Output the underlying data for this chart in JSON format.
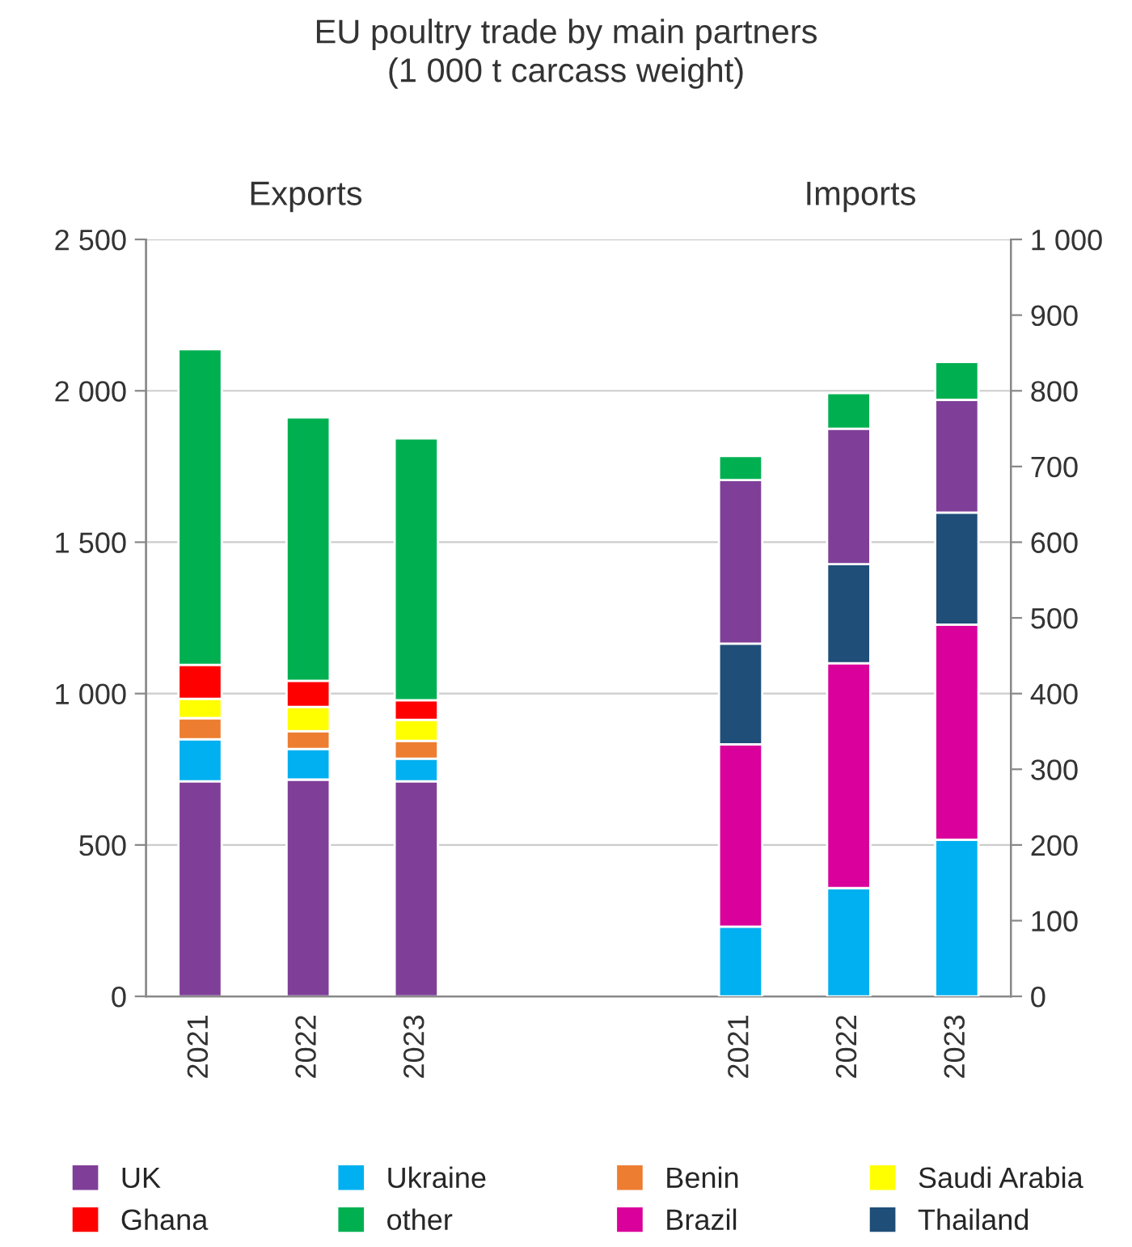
{
  "chart_data": {
    "type": "bar",
    "title": "EU poultry trade by main partners\n(1 000 t carcass weight)",
    "stacked": true,
    "categories": [
      "2021",
      "2022",
      "2023",
      null,
      null,
      "2021",
      "2022",
      "2023"
    ],
    "annotations": [
      "Exports",
      "Imports"
    ],
    "series": [
      {
        "name": "UK",
        "color": "#7f3f98",
        "values": [
          710,
          716,
          710,
          null,
          null,
          null,
          null,
          null
        ]
      },
      {
        "name": "Ukraine",
        "color": "#00b0f0",
        "values": [
          139,
          101,
          75,
          null,
          null,
          null,
          null,
          null
        ]
      },
      {
        "name": "Benin",
        "color": "#ed7d31",
        "values": [
          70,
          59,
          59,
          null,
          null,
          null,
          null,
          null
        ]
      },
      {
        "name": "Saudi Arabia",
        "color": "#ffff00",
        "values": [
          64,
          80,
          69,
          null,
          null,
          null,
          null,
          null
        ]
      },
      {
        "name": "Ghana",
        "color": "#ff0000",
        "values": [
          112,
          86,
          65,
          null,
          null,
          null,
          null,
          null
        ]
      },
      {
        "name": "other",
        "color": "#00b050",
        "values": [
          1042,
          870,
          865,
          null,
          null,
          null,
          null,
          null
        ]
      },
      {
        "color": "#00b0f0",
        "axis": "y2",
        "values": [
          null,
          null,
          null,
          null,
          null,
          92,
          143,
          207
        ]
      },
      {
        "name": "Brazil",
        "color": "#d9009b",
        "axis": "y2",
        "values": [
          null,
          null,
          null,
          null,
          null,
          241,
          297,
          284
        ]
      },
      {
        "name": "Thailand",
        "color": "#1f4e79",
        "axis": "y2",
        "values": [
          null,
          null,
          null,
          null,
          null,
          133,
          131,
          148
        ]
      },
      {
        "color": "#7f3f98",
        "axis": "y2",
        "values": [
          null,
          null,
          null,
          null,
          null,
          216,
          179,
          149
        ]
      },
      {
        "color": "#00b050",
        "axis": "y2",
        "values": [
          null,
          null,
          null,
          null,
          null,
          32,
          47,
          50
        ]
      }
    ],
    "ylim": [
      0,
      2500
    ],
    "yticks": [
      0,
      500,
      {
        "value": 1000,
        "label": "1 000"
      },
      {
        "value": 1500,
        "label": "1 500"
      },
      {
        "value": 2000,
        "label": "2 000"
      },
      {
        "value": 2500,
        "label": "2 500"
      }
    ],
    "y2lim": [
      0,
      1000
    ],
    "y2ticks": [
      0,
      100,
      200,
      300,
      400,
      500,
      600,
      700,
      800,
      900,
      {
        "value": 1000,
        "label": "1 000"
      }
    ],
    "grid": "y",
    "legend": "bottom"
  }
}
